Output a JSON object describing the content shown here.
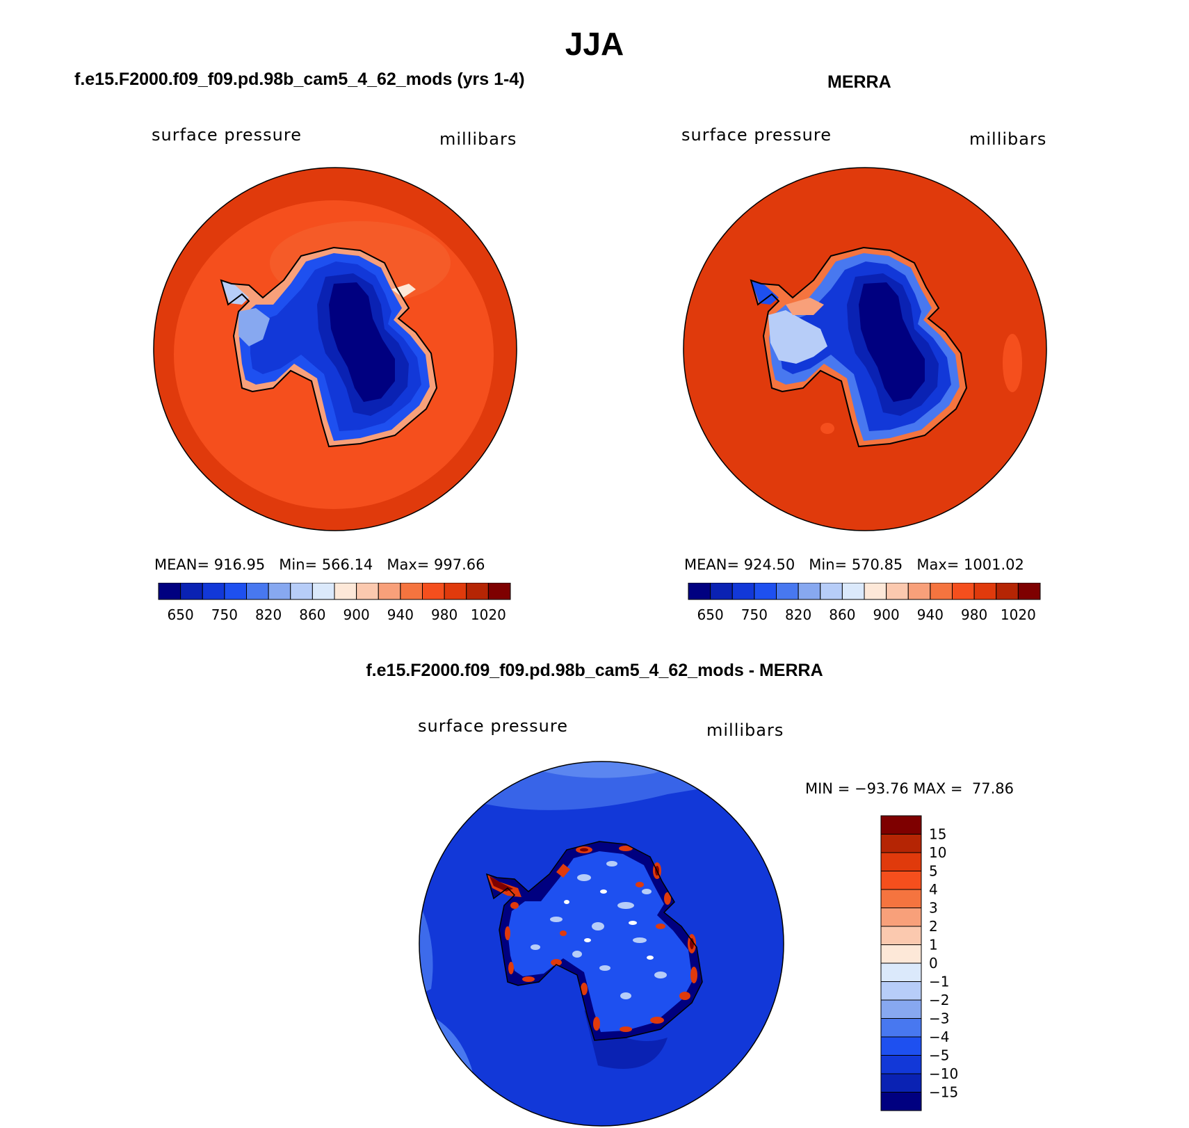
{
  "title": "JJA",
  "panels": [
    {
      "id": "model",
      "title": "f.e15.F2000.f09_f09.pd.98b_cam5_4_62_mods (yrs 1-4)",
      "left_label": "surface pressure",
      "right_label": "millibars",
      "stats": {
        "mean_label": "MEAN=",
        "mean": "916.95",
        "min_label": "Min=",
        "min": "566.14",
        "max_label": "Max=",
        "max": "997.66"
      }
    },
    {
      "id": "obs",
      "title": "MERRA",
      "left_label": "surface pressure",
      "right_label": "millibars",
      "stats": {
        "mean_label": "MEAN=",
        "mean": "924.50",
        "min_label": "Min=",
        "min": "570.85",
        "max_label": "Max=",
        "max": "1001.02"
      }
    }
  ],
  "diff_panel": {
    "title": "f.e15.F2000.f09_f09.pd.98b_cam5_4_62_mods - MERRA",
    "left_label": "surface pressure",
    "right_label": "millibars",
    "minmax": "MIN = −93.76 MAX =  77.86"
  },
  "colorbar_abs": {
    "colors": [
      "#000080",
      "#0a22b3",
      "#1238d8",
      "#1e50f0",
      "#4878f0",
      "#87a8f0",
      "#b7cdf8",
      "#dbe9fb",
      "#fde8d8",
      "#fbc9af",
      "#f8a07a",
      "#f5743f",
      "#f54f1d",
      "#e03a0c",
      "#b52504",
      "#7e0000"
    ],
    "labels": [
      "650",
      "750",
      "820",
      "860",
      "900",
      "940",
      "980",
      "1020"
    ]
  },
  "colorbar_diff": {
    "colors": [
      "#7e0000",
      "#b52504",
      "#e03a0c",
      "#f54f1d",
      "#f5743f",
      "#f8a07a",
      "#fbc9af",
      "#fde8d8",
      "#dbe9fb",
      "#b7cdf8",
      "#87a8f0",
      "#4878f0",
      "#1e50f0",
      "#1238d8",
      "#0a22b3",
      "#000080"
    ],
    "labels": [
      "15",
      "10",
      "5",
      "4",
      "3",
      "2",
      "1",
      "0",
      "−1",
      "−2",
      "−3",
      "−4",
      "−5",
      "−10",
      "−15"
    ]
  }
}
